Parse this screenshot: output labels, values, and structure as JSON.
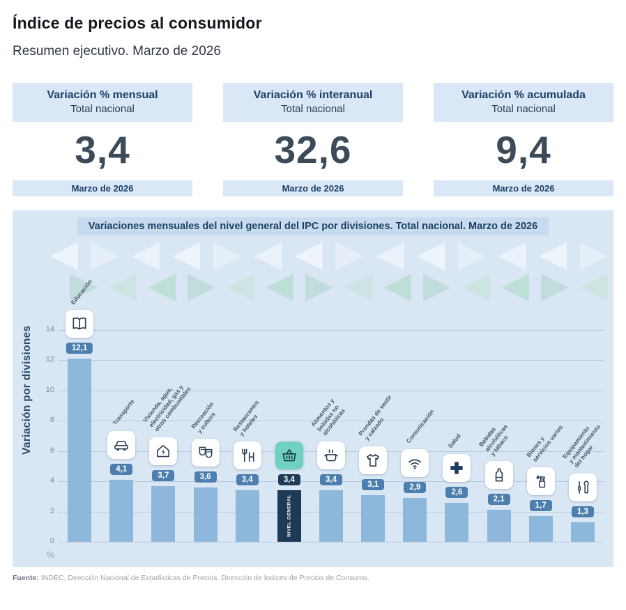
{
  "page": {
    "title": "Índice de precios al consumidor",
    "subtitle": "Resumen ejecutivo. Marzo de 2026",
    "source_label": "Fuente:",
    "source_text": " INDEC, Dirección Nacional de Estadísticas de Precios. Dirección de Índices de Precios de Consumo."
  },
  "summary_cards": [
    {
      "title": "Variación % mensual",
      "subtitle": "Total nacional",
      "value": "3,4",
      "period": "Marzo de 2026"
    },
    {
      "title": "Variación % interanual",
      "subtitle": "Total nacional",
      "value": "32,6",
      "period": "Marzo de 2026"
    },
    {
      "title": "Variación % acumulada",
      "subtitle": "Total nacional",
      "value": "9,4",
      "period": "Marzo de 2026"
    }
  ],
  "chart_data": {
    "type": "bar",
    "title": "Variaciones mensuales del nivel general del IPC por divisiones. Total nacional. Marzo de 2026",
    "ylabel": "Variación por divisiones",
    "unit": "%",
    "ylim": [
      0,
      14
    ],
    "yticks": [
      0,
      2,
      4,
      6,
      8,
      10,
      12,
      14
    ],
    "grid": true,
    "categories": [
      "Educación",
      "Transporte",
      "Vivienda, agua,\nelectricidad, gas y\notros combustibles",
      "Recreación\ny cultura",
      "Restaurantes\ny hoteles",
      "Nivel general",
      "Alimentos y\nbebidas no\nalcohólicas",
      "Prendas de vestir\ny calzado",
      "Comunicación",
      "Salud",
      "Bebidas\nalcohólicas\ny tabaco",
      "Bienes y\nservicios varios",
      "Equipamiento\ny mantenimiento\ndel hogar"
    ],
    "values": [
      12.1,
      4.1,
      3.7,
      3.6,
      3.4,
      3.4,
      3.4,
      3.1,
      2.9,
      2.6,
      2.1,
      1.7,
      1.3
    ],
    "value_labels": [
      "12,1",
      "4,1",
      "3,7",
      "3,6",
      "3,4",
      "3,4",
      "3,4",
      "3,1",
      "2,9",
      "2,6",
      "2,1",
      "1,7",
      "1,3"
    ],
    "icons": [
      "book-icon",
      "car-icon",
      "house-energy-icon",
      "theater-masks-icon",
      "restaurant-hotel-icon",
      "shopping-basket-icon",
      "food-pot-icon",
      "tshirt-icon",
      "wifi-icon",
      "health-cross-icon",
      "bottle-icon",
      "spray-bottle-icon",
      "tools-icon"
    ],
    "highlight": {
      "index": 5,
      "bar_label": "NIVEL GENERAL"
    },
    "colors": {
      "bar": "#8db8dc",
      "highlight_bar": "#1d3a57",
      "badge": "#4d7fae",
      "highlight_badge": "#1d3a57",
      "panel_bg": "#d9e7f4",
      "banner_bg": "#c6dcee",
      "icon_tile": "#ffffff",
      "highlight_icon_tile": "#6fd1c0"
    }
  }
}
